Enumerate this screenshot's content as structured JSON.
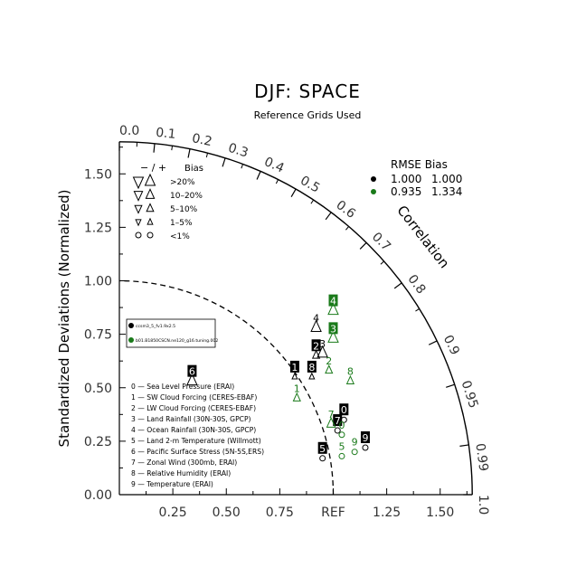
{
  "chart_data": {
    "type": "taylor",
    "title": "DJF: SPACE",
    "subtitle": "Reference Grids Used",
    "ylabel": "Standardized Deviations (Normalized)",
    "arc_label": "Correlation",
    "ref_label": "REF",
    "x_ticks": [
      "0.25",
      "0.50",
      "0.75",
      "REF",
      "1.25",
      "1.50"
    ],
    "y_ticks": [
      "0.00",
      "0.25",
      "0.50",
      "0.75",
      "1.00",
      "1.25",
      "1.50"
    ],
    "corr_ticks": [
      {
        "r": 0.0,
        "label": "0.0"
      },
      {
        "r": 0.1,
        "label": "0.1"
      },
      {
        "r": 0.2,
        "label": "0.2"
      },
      {
        "r": 0.3,
        "label": "0.3"
      },
      {
        "r": 0.4,
        "label": "0.4"
      },
      {
        "r": 0.5,
        "label": "0.5"
      },
      {
        "r": 0.6,
        "label": "0.6"
      },
      {
        "r": 0.7,
        "label": "0.7"
      },
      {
        "r": 0.8,
        "label": "0.8"
      },
      {
        "r": 0.9,
        "label": "0.9"
      },
      {
        "r": 0.95,
        "label": "0.95"
      },
      {
        "r": 0.99,
        "label": "0.99"
      },
      {
        "r": 1.0,
        "label": "1.0"
      }
    ],
    "axis_max": 1.65,
    "ref_std": 1.0,
    "bias_legend": {
      "header_sign": "− / +",
      "header_label": "Bias",
      "rows": [
        {
          "label": ">20%",
          "size": 5
        },
        {
          "label": "10–20%",
          "size": 4.2
        },
        {
          "label": "5–10%",
          "size": 3.5
        },
        {
          "label": "1–5%",
          "size": 2.6
        },
        {
          "label": "<1%",
          "size": 0
        }
      ]
    },
    "rmse_legend": {
      "header": "RMSE  Bias",
      "rows": [
        {
          "color": "#000000",
          "rmse": "1.000",
          "bias": "1.000"
        },
        {
          "color": "#1a7a1a",
          "rmse": "0.935",
          "bias": "1.334"
        }
      ]
    },
    "cases": [
      {
        "name": "ccsm3_5_fv1.9x2.5",
        "color": "#000000"
      },
      {
        "name": "b01.B1850CSCN.ne120_g16.tuning.002",
        "color": "#1a7a1a"
      }
    ],
    "variables": [
      "0 — Sea Level Pressure (ERAI)",
      "1 — SW Cloud Forcing (CERES-EBAF)",
      "2 — LW Cloud Forcing (CERES-EBAF)",
      "3 — Land Rainfall (30N-30S, GPCP)",
      "4 — Ocean Rainfall (30N-30S, GPCP)",
      "5 — Land 2-m Temperature (Willmott)",
      "6 — Pacific Surface Stress (5N-5S,ERS)",
      "7 — Zonal Wind (300mb, ERAI)",
      "8 — Relative Humidity (ERAI)",
      "9 — Temperature (ERAI)"
    ],
    "series": [
      {
        "name": "ccsm3_5_fv1.9x2.5",
        "color": "#000000",
        "points": [
          {
            "id": "0",
            "x": 1.05,
            "y": 0.35,
            "marker": "circle",
            "size": 0,
            "boxed": true
          },
          {
            "id": "1",
            "x": 0.82,
            "y": 0.55,
            "marker": "up",
            "size": 2.6,
            "boxed": true
          },
          {
            "id": "2",
            "x": 0.92,
            "y": 0.65,
            "marker": "up",
            "size": 3.5,
            "boxed": true
          },
          {
            "id": "3",
            "x": 0.95,
            "y": 0.66,
            "marker": "up",
            "size": 5,
            "boxed": false
          },
          {
            "id": "4",
            "x": 0.92,
            "y": 0.78,
            "marker": "up",
            "size": 5,
            "boxed": false
          },
          {
            "id": "5",
            "x": 0.95,
            "y": 0.17,
            "marker": "circle",
            "size": 0,
            "boxed": true
          },
          {
            "id": "6",
            "x": 0.34,
            "y": 0.53,
            "marker": "up",
            "size": 5,
            "boxed": true
          },
          {
            "id": "7",
            "x": 1.02,
            "y": 0.3,
            "marker": "circle",
            "size": 0,
            "boxed": true
          },
          {
            "id": "8",
            "x": 0.9,
            "y": 0.55,
            "marker": "up",
            "size": 2.6,
            "boxed": true
          },
          {
            "id": "9",
            "x": 1.15,
            "y": 0.22,
            "marker": "circle",
            "size": 0,
            "boxed": true
          }
        ]
      },
      {
        "name": "b01.B1850CSCN.ne120_g16.tuning.002",
        "color": "#1a7a1a",
        "points": [
          {
            "id": "0",
            "x": 1.04,
            "y": 0.28,
            "marker": "circle",
            "size": 0,
            "boxed": false
          },
          {
            "id": "1",
            "x": 0.83,
            "y": 0.45,
            "marker": "up",
            "size": 3.5,
            "boxed": false
          },
          {
            "id": "2",
            "x": 0.98,
            "y": 0.58,
            "marker": "up",
            "size": 3.5,
            "boxed": false
          },
          {
            "id": "3",
            "x": 1.0,
            "y": 0.73,
            "marker": "up",
            "size": 5,
            "boxed": true
          },
          {
            "id": "4",
            "x": 1.0,
            "y": 0.86,
            "marker": "up",
            "size": 5,
            "boxed": true
          },
          {
            "id": "5",
            "x": 1.04,
            "y": 0.18,
            "marker": "circle",
            "size": 0,
            "boxed": false
          },
          {
            "id": "7",
            "x": 0.99,
            "y": 0.33,
            "marker": "up",
            "size": 4.2,
            "boxed": false
          },
          {
            "id": "8",
            "x": 1.08,
            "y": 0.53,
            "marker": "up",
            "size": 3.5,
            "boxed": false
          },
          {
            "id": "9",
            "x": 1.1,
            "y": 0.2,
            "marker": "circle",
            "size": 0,
            "boxed": false
          }
        ]
      }
    ]
  }
}
